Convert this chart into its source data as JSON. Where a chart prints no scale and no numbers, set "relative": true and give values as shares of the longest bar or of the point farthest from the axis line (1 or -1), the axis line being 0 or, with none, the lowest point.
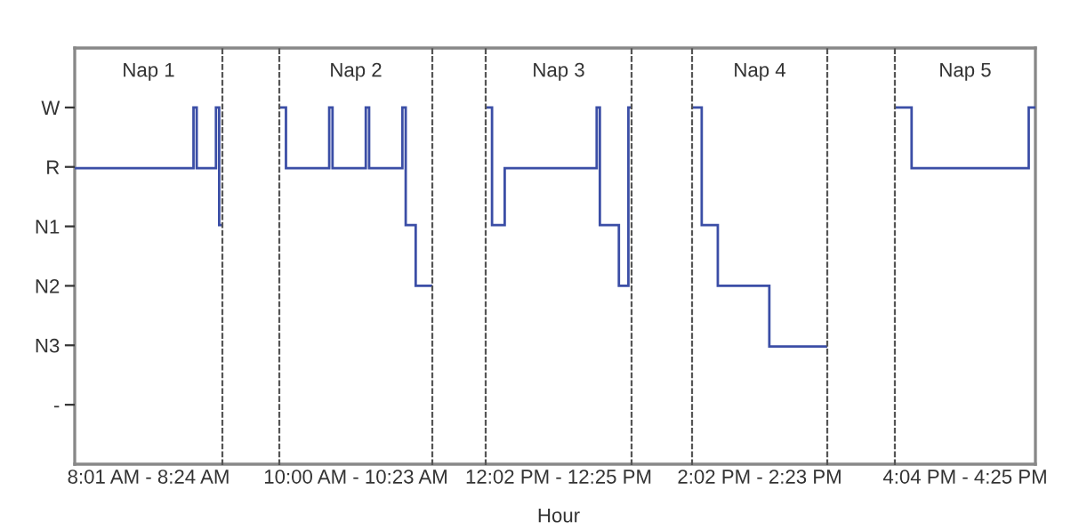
{
  "chart_data": [
    {
      "type": "step",
      "title": "Nap 1",
      "xlabel": "8:01 AM - 8:24 AM",
      "relative": true,
      "categories": [
        null,
        null,
        null,
        null,
        null,
        null,
        null,
        null,
        null,
        null,
        null,
        null,
        null,
        null,
        null,
        null,
        null,
        null,
        null,
        null,
        null,
        null,
        null,
        null,
        null,
        null,
        null,
        null,
        null,
        null,
        null,
        null,
        null,
        null,
        null,
        null,
        null,
        null,
        null,
        null,
        null,
        null,
        null,
        null,
        null,
        null
      ],
      "annotations": [
        "W",
        "R",
        "N1",
        "N2",
        "N3",
        "-"
      ],
      "series": [
        {
          "color": "#3b4ea6",
          "values": [
            0.83,
            0.83,
            0.83,
            0.83,
            0.83,
            0.83,
            0.83,
            0.83,
            0.83,
            0.83,
            0.83,
            0.83,
            0.83,
            0.83,
            0.83,
            0.83,
            0.83,
            0.83,
            0.83,
            0.83,
            0.83,
            0.83,
            0.83,
            0.83,
            0.83,
            0.83,
            0.83,
            0.83,
            0.83,
            0.83,
            0.83,
            0.83,
            0.83,
            0.83,
            0.83,
            0.83,
            0.83,
            1,
            0.83,
            0.83,
            0.83,
            0.83,
            0.83,
            0.83,
            1,
            0.67
          ]
        }
      ]
    },
    {
      "type": "step",
      "title": "Nap 2",
      "xlabel": "10:00 AM - 10:23 AM",
      "relative": true,
      "categories": [
        null,
        null,
        null,
        null,
        null,
        null,
        null,
        null,
        null,
        null,
        null,
        null,
        null,
        null,
        null,
        null,
        null,
        null,
        null,
        null,
        null,
        null,
        null,
        null,
        null,
        null,
        null,
        null,
        null,
        null,
        null,
        null,
        null,
        null,
        null,
        null,
        null,
        null,
        null,
        null,
        null,
        null,
        null,
        null,
        null,
        null
      ],
      "series": [
        {
          "color": "#3b4ea6",
          "values": [
            1,
            1,
            0.83,
            0.83,
            0.83,
            0.83,
            0.83,
            0.83,
            0.83,
            0.83,
            0.83,
            0.83,
            0.83,
            0.83,
            0.83,
            1,
            0.83,
            0.83,
            0.83,
            0.83,
            0.83,
            0.83,
            0.83,
            0.83,
            0.83,
            0.83,
            1,
            0.83,
            0.83,
            0.83,
            0.83,
            0.83,
            0.83,
            0.83,
            0.83,
            0.83,
            0.83,
            1,
            0.67,
            0.67,
            0.67,
            0.5,
            0.5,
            0.5,
            0.5,
            0.5
          ]
        }
      ]
    },
    {
      "type": "step",
      "title": "Nap 3",
      "xlabel": "12:02 PM - 12:25 PM",
      "relative": true,
      "annotations": [
        "Hour"
      ],
      "categories": [
        null,
        null,
        null,
        null,
        null,
        null,
        null,
        null,
        null,
        null,
        null,
        null,
        null,
        null,
        null,
        null,
        null,
        null,
        null,
        null,
        null,
        null,
        null,
        null,
        null,
        null,
        null,
        null,
        null,
        null,
        null,
        null,
        null,
        null,
        null,
        null,
        null,
        null,
        null,
        null,
        null,
        null,
        null,
        null,
        null,
        null
      ],
      "series": [
        {
          "color": "#3b4ea6",
          "values": [
            1,
            1,
            0.67,
            0.67,
            0.67,
            0.67,
            0.83,
            0.83,
            0.83,
            0.83,
            0.83,
            0.83,
            0.83,
            0.83,
            0.83,
            0.83,
            0.83,
            0.83,
            0.83,
            0.83,
            0.83,
            0.83,
            0.83,
            0.83,
            0.83,
            0.83,
            0.83,
            0.83,
            0.83,
            0.83,
            0.83,
            0.83,
            0.83,
            0.83,
            0.83,
            1,
            0.67,
            0.67,
            0.67,
            0.67,
            0.67,
            0.67,
            0.5,
            0.5,
            0.5,
            1
          ]
        }
      ]
    },
    {
      "type": "step",
      "title": "Nap 4",
      "xlabel": "2:02 PM - 2:23 PM",
      "relative": true,
      "categories": [
        null,
        null,
        null,
        null,
        null,
        null,
        null,
        null,
        null,
        null,
        null,
        null,
        null,
        null,
        null,
        null,
        null,
        null,
        null,
        null,
        null,
        null,
        null,
        null,
        null,
        null,
        null,
        null,
        null,
        null,
        null,
        null,
        null,
        null,
        null,
        null,
        null,
        null,
        null,
        null,
        null,
        null
      ],
      "series": [
        {
          "color": "#3b4ea6",
          "values": [
            1,
            1,
            1,
            0.67,
            0.67,
            0.67,
            0.67,
            0.67,
            0.5,
            0.5,
            0.5,
            0.5,
            0.5,
            0.5,
            0.5,
            0.5,
            0.5,
            0.5,
            0.5,
            0.5,
            0.5,
            0.5,
            0.5,
            0.5,
            0.33,
            0.33,
            0.33,
            0.33,
            0.33,
            0.33,
            0.33,
            0.33,
            0.33,
            0.33,
            0.33,
            0.33,
            0.33,
            0.33,
            0.33,
            0.33,
            0.33,
            0.33
          ]
        }
      ]
    },
    {
      "type": "step",
      "title": "Nap 5",
      "xlabel": "4:04 PM - 4:25 PM",
      "relative": true,
      "categories": [
        null,
        null,
        null,
        null,
        null,
        null,
        null,
        null,
        null,
        null,
        null,
        null,
        null,
        null,
        null,
        null,
        null,
        null,
        null,
        null,
        null,
        null,
        null,
        null,
        null,
        null,
        null,
        null,
        null,
        null,
        null,
        null,
        null,
        null,
        null,
        null,
        null,
        null,
        null,
        null,
        null,
        null
      ],
      "series": [
        {
          "color": "#3b4ea6",
          "values": [
            1,
            1,
            1,
            1,
            1,
            0.83,
            0.83,
            0.83,
            0.83,
            0.83,
            0.83,
            0.83,
            0.83,
            0.83,
            0.83,
            0.83,
            0.83,
            0.83,
            0.83,
            0.83,
            0.83,
            0.83,
            0.83,
            0.83,
            0.83,
            0.83,
            0.83,
            0.83,
            0.83,
            0.83,
            0.83,
            0.83,
            0.83,
            0.83,
            0.83,
            0.83,
            0.83,
            0.83,
            0.83,
            0.83,
            1,
            1
          ]
        }
      ]
    }
  ]
}
